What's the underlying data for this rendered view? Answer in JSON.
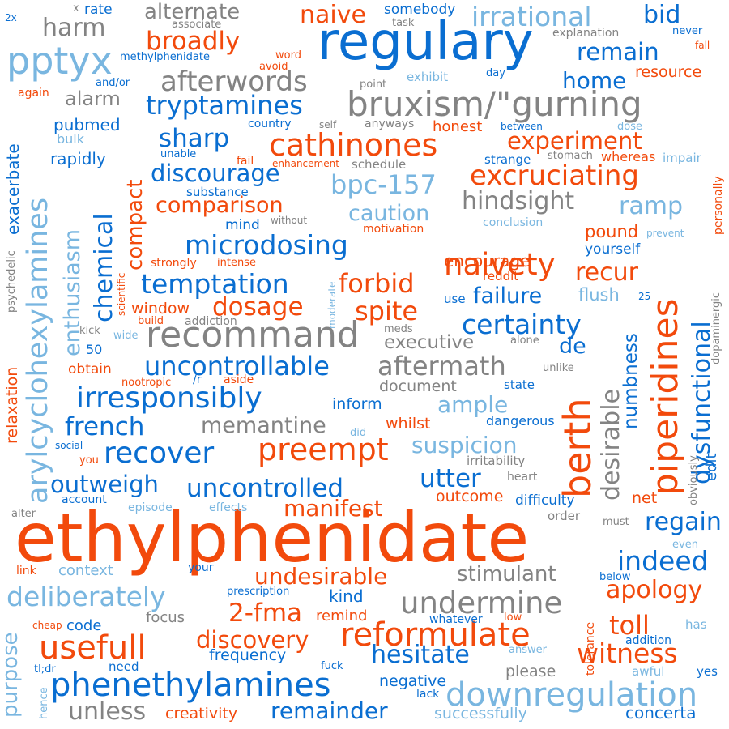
{
  "palette": {
    "blue": "#0a6ed1",
    "orange": "#f24a0c",
    "light_blue": "#79b6e0",
    "gray": "#838383"
  },
  "words": [
    {
      "text": "ethylphenidate",
      "color": "orange"
    },
    {
      "text": "regulary",
      "color": "blue"
    },
    {
      "text": "bruxism/\"gurning",
      "color": "gray"
    },
    {
      "text": "berth",
      "color": "orange"
    },
    {
      "text": "piperidines",
      "color": "orange"
    },
    {
      "text": "arylcyclohexylamines",
      "color": "light_blue"
    },
    {
      "text": "pptyx",
      "color": "light_blue"
    },
    {
      "text": "recommand",
      "color": "gray"
    },
    {
      "text": "phenethylamines",
      "color": "blue"
    },
    {
      "text": "downregulation",
      "color": "light_blue"
    },
    {
      "text": "usefull",
      "color": "orange"
    },
    {
      "text": "reformulate",
      "color": "orange"
    },
    {
      "text": "cathinones",
      "color": "orange"
    },
    {
      "text": "tryptamines",
      "color": "blue"
    },
    {
      "text": "irresponsibly",
      "color": "blue"
    },
    {
      "text": "microdosing",
      "color": "blue"
    },
    {
      "text": "naivety",
      "color": "orange"
    },
    {
      "text": "undermine",
      "color": "gray"
    },
    {
      "text": "excruciating",
      "color": "orange"
    },
    {
      "text": "afterwords",
      "color": "gray"
    },
    {
      "text": "irrational",
      "color": "light_blue"
    },
    {
      "text": "broadly",
      "color": "orange"
    },
    {
      "text": "uncontrollable",
      "color": "blue"
    },
    {
      "text": "certainty",
      "color": "blue"
    },
    {
      "text": "recover",
      "color": "blue"
    },
    {
      "text": "preempt",
      "color": "orange"
    },
    {
      "text": "aftermath",
      "color": "gray"
    },
    {
      "text": "temptation",
      "color": "blue"
    },
    {
      "text": "deliberately",
      "color": "light_blue"
    },
    {
      "text": "uncontrolled",
      "color": "blue"
    },
    {
      "text": "bpc-157",
      "color": "light_blue"
    },
    {
      "text": "hindsight",
      "color": "gray"
    },
    {
      "text": "experiment",
      "color": "orange"
    },
    {
      "text": "dysfunctional",
      "color": "blue"
    },
    {
      "text": "desirable",
      "color": "gray"
    },
    {
      "text": "chemical",
      "color": "blue"
    },
    {
      "text": "enthusiasm",
      "color": "light_blue"
    },
    {
      "text": "compact",
      "color": "orange"
    },
    {
      "text": "witness",
      "color": "orange"
    },
    {
      "text": "apology",
      "color": "orange"
    },
    {
      "text": "hesitate",
      "color": "blue"
    },
    {
      "text": "suspicion",
      "color": "light_blue"
    },
    {
      "text": "discovery",
      "color": "orange"
    },
    {
      "text": "memantine",
      "color": "gray"
    },
    {
      "text": "undesirable",
      "color": "orange"
    },
    {
      "text": "remainder",
      "color": "blue"
    },
    {
      "text": "unless",
      "color": "gray"
    },
    {
      "text": "2-fma",
      "color": "orange"
    },
    {
      "text": "discourage",
      "color": "blue"
    },
    {
      "text": "comparison",
      "color": "orange"
    },
    {
      "text": "forbid",
      "color": "orange"
    },
    {
      "text": "spite",
      "color": "orange"
    },
    {
      "text": "dosage",
      "color": "orange"
    },
    {
      "text": "manifest",
      "color": "orange"
    },
    {
      "text": "outweigh",
      "color": "blue"
    },
    {
      "text": "french",
      "color": "blue"
    },
    {
      "text": "utter",
      "color": "blue"
    },
    {
      "text": "ample",
      "color": "light_blue"
    },
    {
      "text": "regain",
      "color": "blue"
    },
    {
      "text": "indeed",
      "color": "blue"
    },
    {
      "text": "toll",
      "color": "orange"
    },
    {
      "text": "stimulant",
      "color": "gray"
    },
    {
      "text": "failure",
      "color": "blue"
    },
    {
      "text": "recur",
      "color": "orange"
    },
    {
      "text": "remain",
      "color": "blue"
    },
    {
      "text": "naive",
      "color": "orange"
    },
    {
      "text": "home",
      "color": "blue"
    },
    {
      "text": "bid",
      "color": "blue"
    },
    {
      "text": "harm",
      "color": "gray"
    },
    {
      "text": "alternate",
      "color": "gray"
    },
    {
      "text": "sharp",
      "color": "blue"
    },
    {
      "text": "caution",
      "color": "light_blue"
    },
    {
      "text": "ramp",
      "color": "light_blue"
    },
    {
      "text": "numbness",
      "color": "blue"
    },
    {
      "text": "purpose",
      "color": "light_blue"
    },
    {
      "text": "de",
      "color": "blue"
    },
    {
      "text": "executive",
      "color": "gray"
    },
    {
      "text": "encourage",
      "color": "orange"
    },
    {
      "text": "pound",
      "color": "orange"
    },
    {
      "text": "alarm",
      "color": "gray"
    },
    {
      "text": "resource",
      "color": "orange"
    },
    {
      "text": "rapidly",
      "color": "blue"
    },
    {
      "text": "pubmed",
      "color": "blue"
    },
    {
      "text": "exacerbate",
      "color": "blue"
    },
    {
      "text": "relaxation",
      "color": "orange"
    },
    {
      "text": "honest",
      "color": "orange"
    },
    {
      "text": "concerta",
      "color": "blue"
    },
    {
      "text": "creativity",
      "color": "orange"
    },
    {
      "text": "successfully",
      "color": "light_blue"
    },
    {
      "text": "negative",
      "color": "blue"
    },
    {
      "text": "frequency",
      "color": "blue"
    },
    {
      "text": "inform",
      "color": "blue"
    },
    {
      "text": "document",
      "color": "gray"
    },
    {
      "text": "whilst",
      "color": "orange"
    },
    {
      "text": "window",
      "color": "orange"
    },
    {
      "text": "outcome",
      "color": "orange"
    },
    {
      "text": "net",
      "color": "orange"
    },
    {
      "text": "flush",
      "color": "light_blue"
    },
    {
      "text": "focus",
      "color": "gray"
    },
    {
      "text": "code",
      "color": "blue"
    },
    {
      "text": "kind",
      "color": "blue"
    },
    {
      "text": "remind",
      "color": "orange"
    },
    {
      "text": "context",
      "color": "light_blue"
    },
    {
      "text": "please",
      "color": "gray"
    },
    {
      "text": "difficulty",
      "color": "blue"
    },
    {
      "text": "dangerous",
      "color": "blue"
    },
    {
      "text": "edit",
      "color": "blue"
    },
    {
      "text": "mind",
      "color": "blue"
    },
    {
      "text": "reddit",
      "color": "orange"
    },
    {
      "text": "use",
      "color": "blue"
    },
    {
      "text": "yourself",
      "color": "blue"
    },
    {
      "text": "irritability",
      "color": "gray"
    },
    {
      "text": "substance",
      "color": "blue"
    },
    {
      "text": "schedule",
      "color": "gray"
    },
    {
      "text": "stomach",
      "color": "gray"
    },
    {
      "text": "strange",
      "color": "blue"
    },
    {
      "text": "whereas",
      "color": "orange"
    },
    {
      "text": "impair",
      "color": "light_blue"
    },
    {
      "text": "personally",
      "color": "orange"
    },
    {
      "text": "dopaminergic",
      "color": "gray"
    },
    {
      "text": "obviously",
      "color": "gray"
    },
    {
      "text": "tolerance",
      "color": "orange"
    },
    {
      "text": "below",
      "color": "blue"
    },
    {
      "text": "addition",
      "color": "blue"
    },
    {
      "text": "awful",
      "color": "light_blue"
    },
    {
      "text": "yes",
      "color": "blue"
    },
    {
      "text": "has",
      "color": "light_blue"
    },
    {
      "text": "even",
      "color": "light_blue"
    },
    {
      "text": "must",
      "color": "gray"
    },
    {
      "text": "order",
      "color": "gray"
    },
    {
      "text": "heart",
      "color": "gray"
    },
    {
      "text": "answer",
      "color": "light_blue"
    },
    {
      "text": "low",
      "color": "orange"
    },
    {
      "text": "whatever",
      "color": "blue"
    },
    {
      "text": "lack",
      "color": "blue"
    },
    {
      "text": "fuck",
      "color": "blue"
    },
    {
      "text": "need",
      "color": "blue"
    },
    {
      "text": "cheap",
      "color": "orange"
    },
    {
      "text": "tl;dr",
      "color": "blue"
    },
    {
      "text": "hence",
      "color": "light_blue"
    },
    {
      "text": "your",
      "color": "blue"
    },
    {
      "text": "prescription",
      "color": "blue"
    },
    {
      "text": "link",
      "color": "orange"
    },
    {
      "text": "alter",
      "color": "gray"
    },
    {
      "text": "account",
      "color": "blue"
    },
    {
      "text": "episode",
      "color": "light_blue"
    },
    {
      "text": "effects",
      "color": "light_blue"
    },
    {
      "text": "social",
      "color": "blue"
    },
    {
      "text": "you",
      "color": "orange"
    },
    {
      "text": "did",
      "color": "light_blue"
    },
    {
      "text": "aside",
      "color": "orange"
    },
    {
      "text": "/r",
      "color": "blue"
    },
    {
      "text": "nootropic",
      "color": "orange"
    },
    {
      "text": "obtain",
      "color": "orange"
    },
    {
      "text": "50",
      "color": "blue"
    },
    {
      "text": "kick",
      "color": "gray"
    },
    {
      "text": "wide",
      "color": "light_blue"
    },
    {
      "text": "build",
      "color": "orange"
    },
    {
      "text": "addiction",
      "color": "gray"
    },
    {
      "text": "meds",
      "color": "gray"
    },
    {
      "text": "alone",
      "color": "gray"
    },
    {
      "text": "unlike",
      "color": "gray"
    },
    {
      "text": "state",
      "color": "blue"
    },
    {
      "text": "25",
      "color": "blue"
    },
    {
      "text": "moderate",
      "color": "light_blue"
    },
    {
      "text": "scientific",
      "color": "orange"
    },
    {
      "text": "psychedelic",
      "color": "gray"
    },
    {
      "text": "strongly",
      "color": "orange"
    },
    {
      "text": "intense",
      "color": "orange"
    },
    {
      "text": "without",
      "color": "gray"
    },
    {
      "text": "motivation",
      "color": "orange"
    },
    {
      "text": "conclusion",
      "color": "light_blue"
    },
    {
      "text": "prevent",
      "color": "light_blue"
    },
    {
      "text": "unable",
      "color": "blue"
    },
    {
      "text": "fail",
      "color": "orange"
    },
    {
      "text": "enhancement",
      "color": "orange"
    },
    {
      "text": "bulk",
      "color": "light_blue"
    },
    {
      "text": "country",
      "color": "blue"
    },
    {
      "text": "self",
      "color": "gray"
    },
    {
      "text": "anyways",
      "color": "gray"
    },
    {
      "text": "between",
      "color": "blue"
    },
    {
      "text": "dose",
      "color": "light_blue"
    },
    {
      "text": "exhibit",
      "color": "light_blue"
    },
    {
      "text": "point",
      "color": "gray"
    },
    {
      "text": "day",
      "color": "blue"
    },
    {
      "text": "and/or",
      "color": "blue"
    },
    {
      "text": "again",
      "color": "orange"
    },
    {
      "text": "avoid",
      "color": "orange"
    },
    {
      "text": "word",
      "color": "orange"
    },
    {
      "text": "methylphenidate",
      "color": "blue"
    },
    {
      "text": "explanation",
      "color": "gray"
    },
    {
      "text": "never",
      "color": "blue"
    },
    {
      "text": "fall",
      "color": "orange"
    },
    {
      "text": "somebody",
      "color": "blue"
    },
    {
      "text": "task",
      "color": "gray"
    },
    {
      "text": "associate",
      "color": "gray"
    },
    {
      "text": "rate",
      "color": "blue"
    },
    {
      "text": "x",
      "color": "gray"
    },
    {
      "text": "2x",
      "color": "blue"
    }
  ]
}
